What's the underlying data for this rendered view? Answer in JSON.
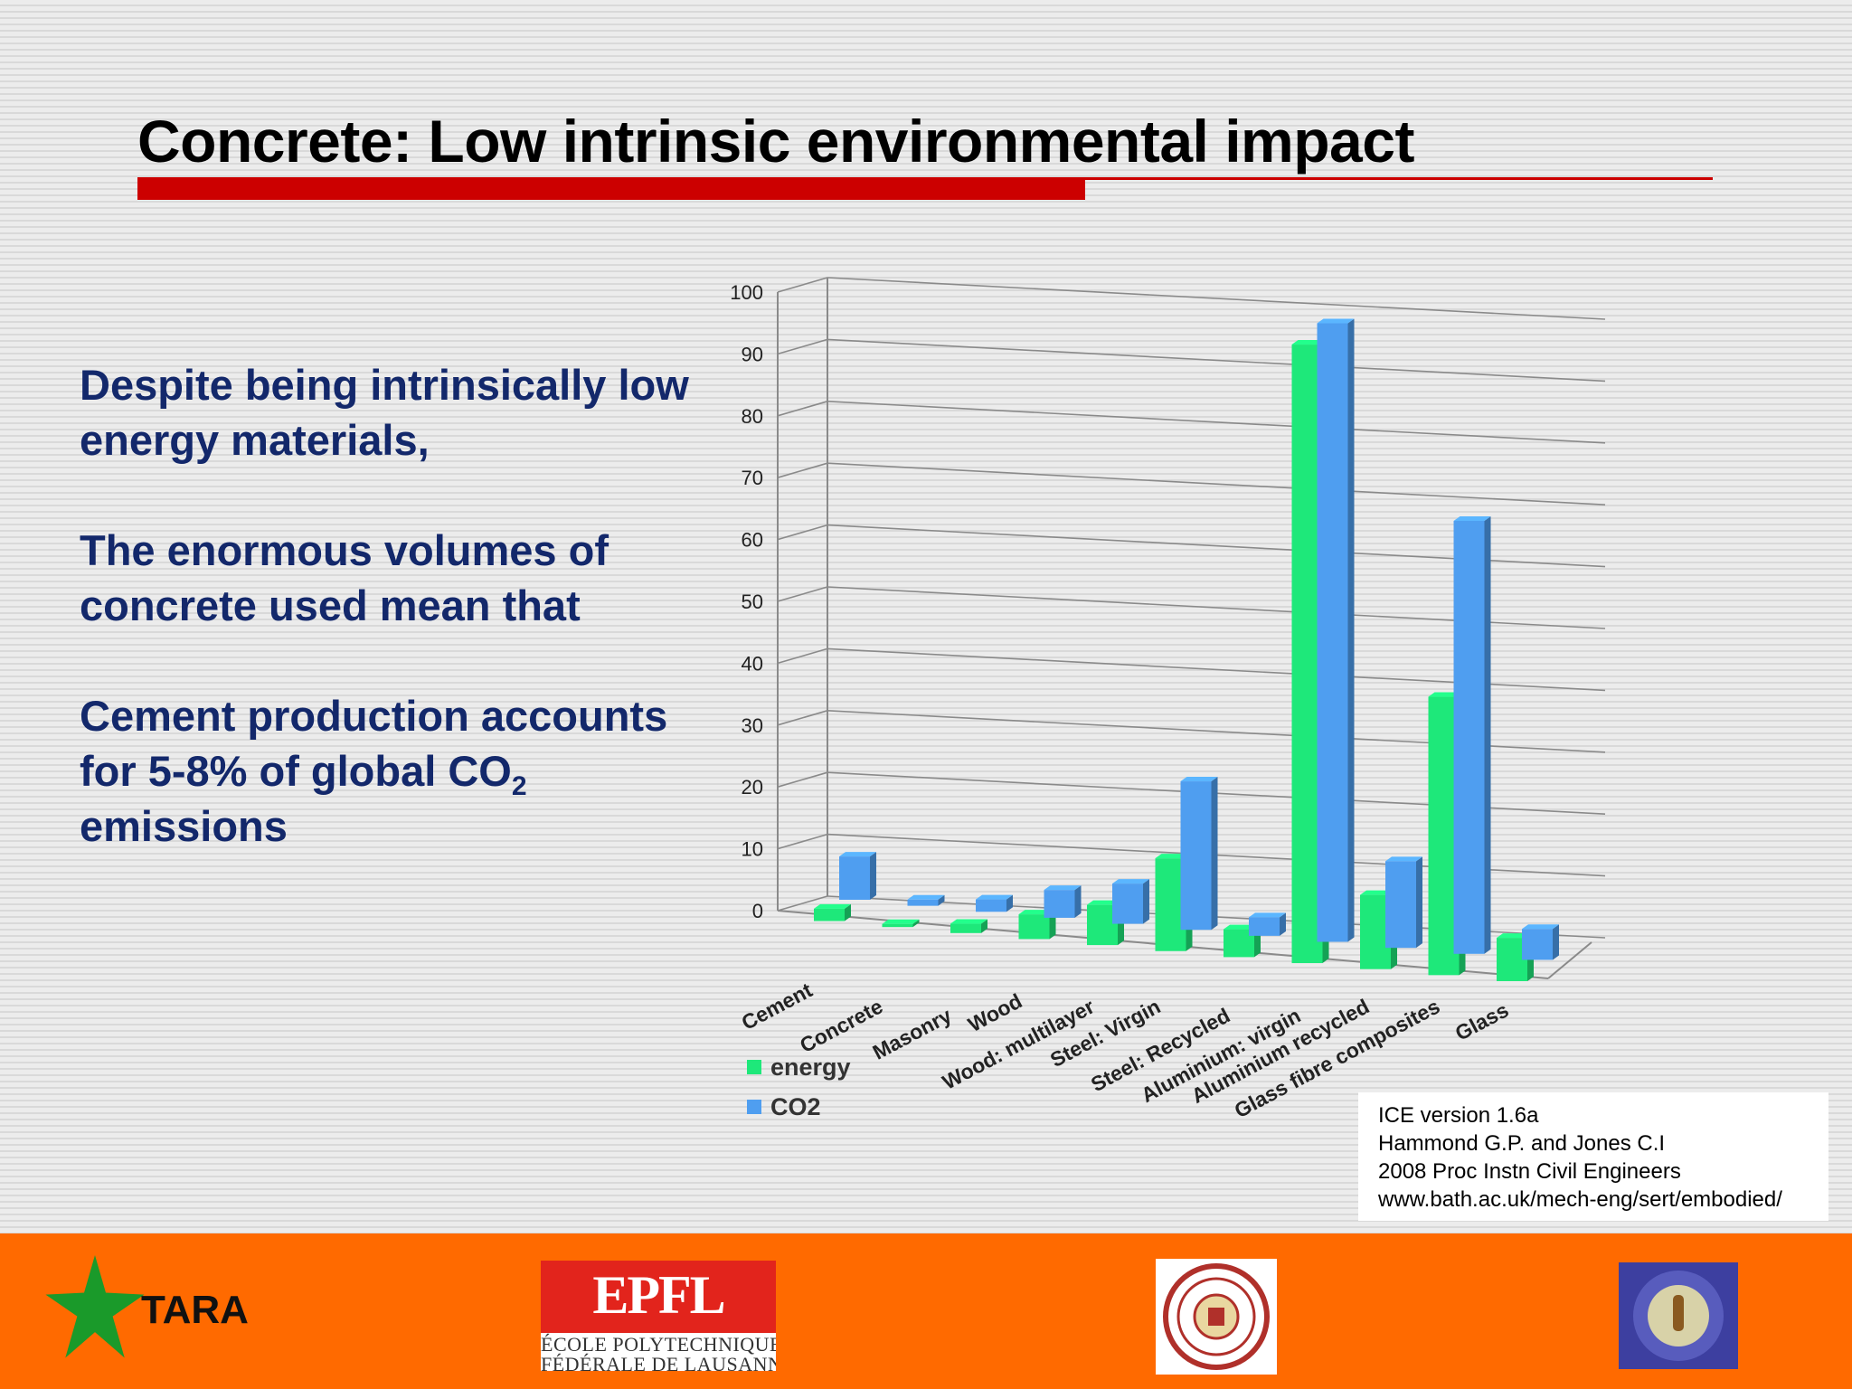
{
  "slide": {
    "title": "Concrete: Low intrinsic environmental impact",
    "bullets": {
      "p1": "Despite being intrinsically low energy materials,",
      "p2": "The enormous volumes of concrete used mean that",
      "p3_before": "Cement production accounts for 5-8% of global CO",
      "p3_sub": "2",
      "p3_after": " emissions"
    },
    "colors": {
      "title_rule": "#cc0000",
      "bullet_text": "#13286b",
      "footer": "#ff6a00"
    }
  },
  "citation": {
    "line1": "ICE version 1.6a",
    "line2": "Hammond G.P. and Jones C.I",
    "line3": "2008 Proc Instn Civil Engineers",
    "line4": "www.bath.ac.uk/mech-eng/sert/embodied/"
  },
  "footer": {
    "tara_label": "TARA",
    "epfl_logo": "EPFL",
    "epfl_line1": "ÉCOLE POLYTECHNIQUE",
    "epfl_line2": "FÉDÉRALE DE LAUSANNE"
  },
  "chart_data": {
    "type": "bar",
    "title": "",
    "xlabel": "",
    "ylabel": "",
    "ylim": [
      0,
      100
    ],
    "yticks": [
      0,
      10,
      20,
      30,
      40,
      50,
      60,
      70,
      80,
      90,
      100
    ],
    "categories": [
      "Cement",
      "Concrete",
      "Masonry",
      "Wood",
      "Wood: multilayer",
      "Steel: Virgin",
      "Steel: Recycled",
      "Aluminium: virgin",
      "Aluminium recycled",
      "Glass fibre composites",
      "Glass"
    ],
    "series": [
      {
        "name": "energy",
        "color": "#1ee87a",
        "values": [
          2,
          0.5,
          1.5,
          4,
          6.5,
          15,
          4.5,
          100,
          12,
          45,
          7
        ]
      },
      {
        "name": "CO2",
        "color": "#4f9ef0",
        "values": [
          7,
          1,
          2,
          4.5,
          6.5,
          24,
          3,
          100,
          14,
          70,
          5
        ]
      }
    ],
    "legend_position": "bottom-left",
    "grid": true,
    "style": "3d clustered columns"
  }
}
